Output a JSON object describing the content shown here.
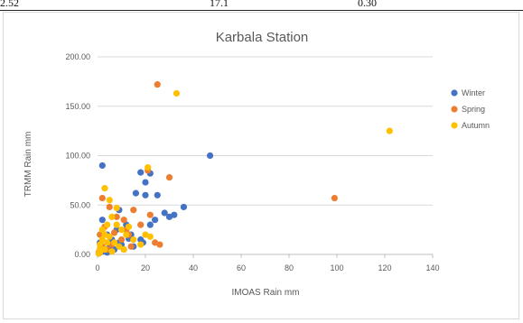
{
  "table_fragment": [
    "2.52",
    "17.1",
    "0.30"
  ],
  "chart_data": {
    "type": "scatter",
    "title": "Karbala Station",
    "xlabel": "IMOAS Rain mm",
    "ylabel": "TRMM Rain mm",
    "xlim": [
      0,
      140
    ],
    "ylim": [
      0,
      200
    ],
    "x_ticks": [
      "0",
      "20",
      "40",
      "60",
      "80",
      "100",
      "120",
      "140"
    ],
    "y_ticks": [
      "0.00",
      "50.00",
      "100.00",
      "150.00",
      "200.00"
    ],
    "grid": "horizontal",
    "legend_position": "right",
    "series": [
      {
        "name": "Winter",
        "color": "#4472c4",
        "points": [
          [
            2,
            90
          ],
          [
            47,
            100
          ],
          [
            18,
            83
          ],
          [
            22,
            82
          ],
          [
            20,
            73
          ],
          [
            25,
            60
          ],
          [
            32,
            40
          ],
          [
            30,
            38
          ],
          [
            36,
            48
          ],
          [
            28,
            42
          ],
          [
            24,
            35
          ],
          [
            20,
            60
          ],
          [
            16,
            62
          ],
          [
            9,
            45
          ],
          [
            12,
            30
          ],
          [
            2,
            35
          ],
          [
            4,
            20
          ],
          [
            6,
            15
          ],
          [
            8,
            25
          ],
          [
            10,
            10
          ],
          [
            14,
            20
          ],
          [
            18,
            15
          ],
          [
            22,
            30
          ],
          [
            5,
            8
          ],
          [
            3,
            5
          ],
          [
            1,
            12
          ],
          [
            7,
            5
          ],
          [
            11,
            5
          ],
          [
            15,
            8
          ],
          [
            19,
            12
          ],
          [
            1,
            2
          ],
          [
            0.5,
            1
          ],
          [
            2,
            3
          ],
          [
            4,
            2
          ],
          [
            9,
            12
          ],
          [
            13,
            16
          ]
        ]
      },
      {
        "name": "Spring",
        "color": "#ed7d31",
        "points": [
          [
            25,
            172
          ],
          [
            99,
            57
          ],
          [
            21,
            85
          ],
          [
            30,
            78
          ],
          [
            22,
            40
          ],
          [
            2,
            57
          ],
          [
            5,
            48
          ],
          [
            8,
            38
          ],
          [
            12,
            25
          ],
          [
            15,
            45
          ],
          [
            3,
            28
          ],
          [
            1,
            20
          ],
          [
            6,
            10
          ],
          [
            10,
            15
          ],
          [
            14,
            8
          ],
          [
            18,
            30
          ],
          [
            24,
            12
          ],
          [
            26,
            10
          ],
          [
            4,
            5
          ],
          [
            2,
            8
          ],
          [
            0.5,
            2
          ],
          [
            7,
            22
          ],
          [
            11,
            35
          ],
          [
            13,
            20
          ]
        ]
      },
      {
        "name": "Autumn",
        "color": "#ffc000",
        "points": [
          [
            33,
            163
          ],
          [
            122,
            125
          ],
          [
            21,
            88
          ],
          [
            3,
            67
          ],
          [
            5,
            55
          ],
          [
            8,
            47
          ],
          [
            6,
            38
          ],
          [
            4,
            30
          ],
          [
            10,
            25
          ],
          [
            12,
            20
          ],
          [
            2,
            15
          ],
          [
            1,
            10
          ],
          [
            7,
            12
          ],
          [
            9,
            8
          ],
          [
            3,
            5
          ],
          [
            1,
            2
          ],
          [
            0.5,
            1
          ],
          [
            5,
            18
          ],
          [
            15,
            15
          ],
          [
            18,
            10
          ],
          [
            20,
            20
          ],
          [
            22,
            18
          ],
          [
            6,
            3
          ],
          [
            2,
            25
          ],
          [
            4,
            12
          ],
          [
            8,
            30
          ],
          [
            11,
            5
          ],
          [
            13,
            28
          ],
          [
            1,
            6
          ],
          [
            3,
            20
          ]
        ]
      }
    ]
  }
}
